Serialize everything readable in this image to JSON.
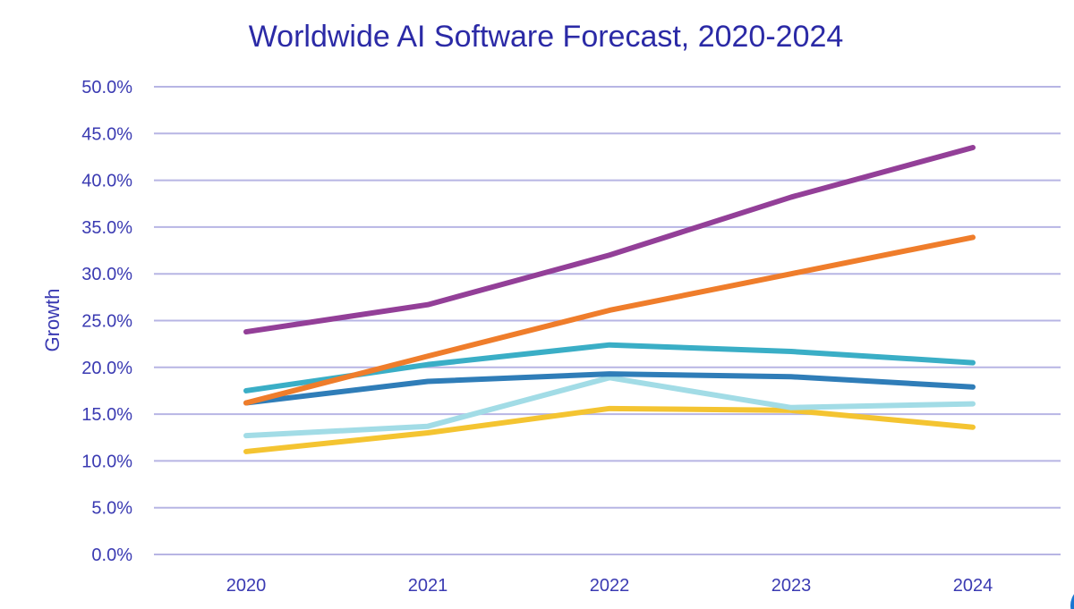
{
  "chart_data": {
    "type": "line",
    "title": "Worldwide AI Software Forecast, 2020-2024",
    "xlabel": "",
    "ylabel": "Growth",
    "categories": [
      "2020",
      "2021",
      "2022",
      "2023",
      "2024"
    ],
    "ylim": [
      0,
      50
    ],
    "yticks": [
      "0.0%",
      "5.0%",
      "10.0%",
      "15.0%",
      "20.0%",
      "25.0%",
      "30.0%",
      "35.0%",
      "40.0%",
      "45.0%",
      "50.0%"
    ],
    "grid": true,
    "legend": "none",
    "series": [
      {
        "color": "#933f98",
        "values": [
          23.8,
          26.7,
          32.0,
          38.2,
          43.5
        ]
      },
      {
        "color": "#ef7d2b",
        "values": [
          16.2,
          21.2,
          26.1,
          30.0,
          33.9
        ]
      },
      {
        "color": "#3aaec6",
        "values": [
          17.5,
          20.3,
          22.4,
          21.7,
          20.5
        ]
      },
      {
        "color": "#2f7db8",
        "values": [
          16.2,
          18.5,
          19.3,
          19.0,
          17.9
        ]
      },
      {
        "color": "#a2dce6",
        "values": [
          12.7,
          13.7,
          18.9,
          15.7,
          16.1
        ]
      },
      {
        "color": "#f4c431",
        "values": [
          11.0,
          13.0,
          15.6,
          15.4,
          13.6
        ]
      }
    ]
  }
}
